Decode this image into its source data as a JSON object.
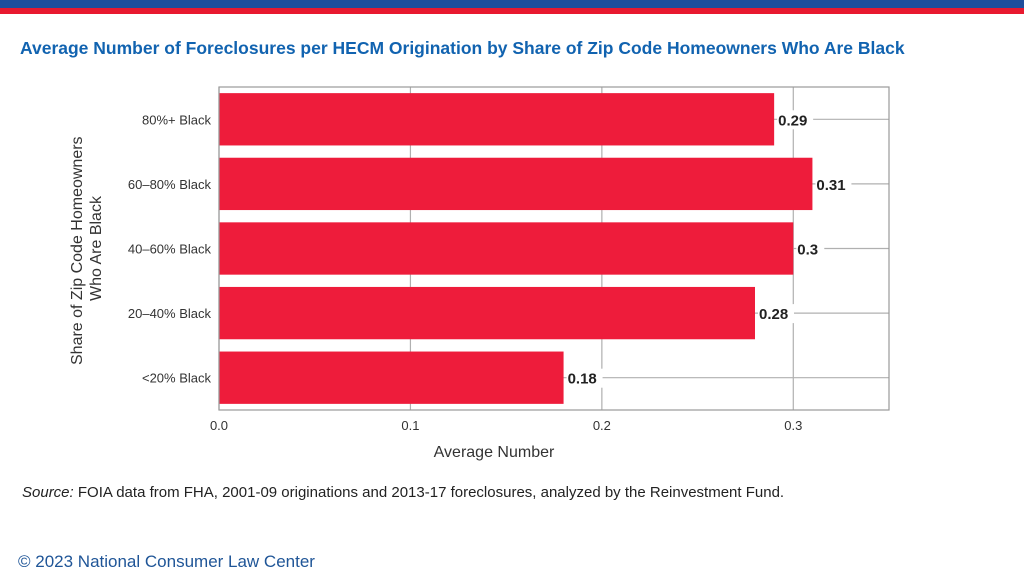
{
  "header": {
    "title": "Average Number of Foreclosures per HECM Origination by Share of Zip Code Homeowners Who Are Black"
  },
  "chart_data": {
    "type": "bar",
    "orientation": "horizontal",
    "categories": [
      "80%+ Black",
      "60–80% Black",
      "40–60% Black",
      "20–40% Black",
      "<20% Black"
    ],
    "values": [
      0.29,
      0.31,
      0.3,
      0.28,
      0.18
    ],
    "data_labels": [
      "0.29",
      "0.31",
      "0.3",
      "0.28",
      "0.18"
    ],
    "xlabel": "Average Number",
    "ylabel_lines": [
      "Share of Zip Code Homeowners",
      "Who Are Black"
    ],
    "xticks": [
      "0.0",
      "0.1",
      "0.2",
      "0.3"
    ],
    "xlim": [
      0,
      0.35
    ],
    "grid": true,
    "bar_color": "#ee1c3b"
  },
  "source": {
    "label": "Source:",
    "text": " FOIA data from FHA, 2001-09 originations and 2013-17 foreclosures, analyzed by the Reinvestment Fund."
  },
  "footer": {
    "copyright": "© 2023 National Consumer Law Center"
  }
}
